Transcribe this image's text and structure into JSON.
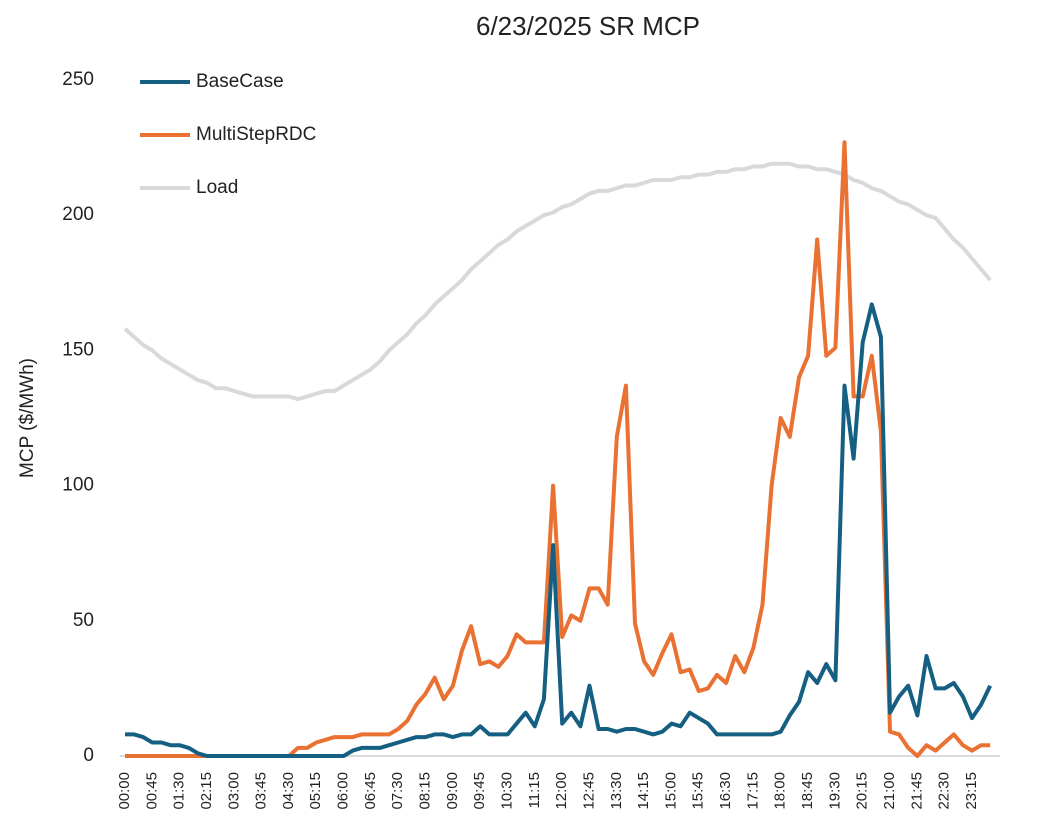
{
  "chart_data": {
    "type": "line",
    "title": "6/23/2025 SR MCP",
    "y_label": "MCP ($/MWh)",
    "categories": [
      "00:00",
      null,
      null,
      "00:45",
      null,
      null,
      "01:30",
      null,
      null,
      "02:15",
      null,
      null,
      "03:00",
      null,
      null,
      "03:45",
      null,
      null,
      "04:30",
      null,
      null,
      "05:15",
      null,
      null,
      "06:00",
      null,
      null,
      "06:45",
      null,
      null,
      "07:30",
      null,
      null,
      "08:15",
      null,
      null,
      "09:00",
      null,
      null,
      "09:45",
      null,
      null,
      "10:30",
      null,
      null,
      "11:15",
      null,
      null,
      "12:00",
      null,
      null,
      "12:45",
      null,
      null,
      "13:30",
      null,
      null,
      "14:15",
      null,
      null,
      "15:00",
      null,
      null,
      "15:45",
      null,
      null,
      "16:30",
      null,
      null,
      "17:15",
      null,
      null,
      "18:00",
      null,
      null,
      "18:45",
      null,
      null,
      "19:30",
      null,
      null,
      "20:15",
      null,
      null,
      "21:00",
      null,
      null,
      "21:45",
      null,
      null,
      "22:30",
      null,
      null,
      "23:15",
      null,
      null
    ],
    "series": [
      {
        "name": "BaseCase",
        "color": "#156082",
        "values": [
          8,
          8,
          7,
          5,
          5,
          4,
          4,
          3,
          1,
          0,
          0,
          0,
          0,
          0,
          0,
          0,
          0,
          0,
          0,
          0,
          0,
          0,
          0,
          0,
          0,
          2,
          3,
          3,
          3,
          4,
          5,
          6,
          7,
          7,
          8,
          8,
          7,
          8,
          8,
          11,
          8,
          8,
          8,
          12,
          16,
          11,
          21,
          78,
          12,
          16,
          11,
          26,
          10,
          10,
          9,
          10,
          10,
          9,
          8,
          9,
          12,
          11,
          16,
          14,
          12,
          8,
          8,
          8,
          8,
          8,
          8,
          8,
          9,
          15,
          20,
          31,
          27,
          34,
          28,
          137,
          110,
          153,
          167,
          155,
          16,
          22,
          26,
          15,
          37,
          25,
          25,
          27,
          22,
          14,
          19,
          26
        ]
      },
      {
        "name": "MultiStepRDC",
        "color": "#e97132",
        "values": [
          0,
          0,
          0,
          0,
          0,
          0,
          0,
          0,
          0,
          0,
          0,
          0,
          0,
          0,
          0,
          0,
          0,
          0,
          0,
          3,
          3,
          5,
          6,
          7,
          7,
          7,
          8,
          8,
          8,
          8,
          10,
          13,
          19,
          23,
          29,
          21,
          26,
          39,
          48,
          34,
          35,
          33,
          37,
          45,
          42,
          42,
          42,
          100,
          44,
          52,
          50,
          62,
          62,
          56,
          118,
          137,
          49,
          35,
          30,
          38,
          45,
          31,
          32,
          24,
          25,
          30,
          27,
          37,
          31,
          40,
          56,
          100,
          125,
          118,
          140,
          148,
          191,
          148,
          151,
          227,
          133,
          133,
          148,
          120,
          9,
          8,
          3,
          0,
          4,
          2,
          5,
          8,
          4,
          2,
          4,
          4
        ]
      },
      {
        "name": "Load",
        "color": "#d9d9d9",
        "values": [
          158,
          155,
          152,
          150,
          147,
          145,
          143,
          141,
          139,
          138,
          136,
          136,
          135,
          134,
          133,
          133,
          133,
          133,
          133,
          132,
          133,
          134,
          135,
          135,
          137,
          139,
          141,
          143,
          146,
          150,
          153,
          156,
          160,
          163,
          167,
          170,
          173,
          176,
          180,
          183,
          186,
          189,
          191,
          194,
          196,
          198,
          200,
          201,
          203,
          204,
          206,
          208,
          209,
          209,
          210,
          211,
          211,
          212,
          213,
          213,
          213,
          214,
          214,
          215,
          215,
          216,
          216,
          217,
          217,
          218,
          218,
          219,
          219,
          219,
          218,
          218,
          217,
          217,
          216,
          215,
          213,
          212,
          210,
          209,
          207,
          205,
          204,
          202,
          200,
          199,
          195,
          191,
          188,
          184,
          180,
          176
        ]
      }
    ],
    "ylim": [
      0,
      250
    ],
    "yticks": [
      0,
      50,
      100,
      150,
      200,
      250
    ],
    "grid": false,
    "legend": "upper-left"
  }
}
